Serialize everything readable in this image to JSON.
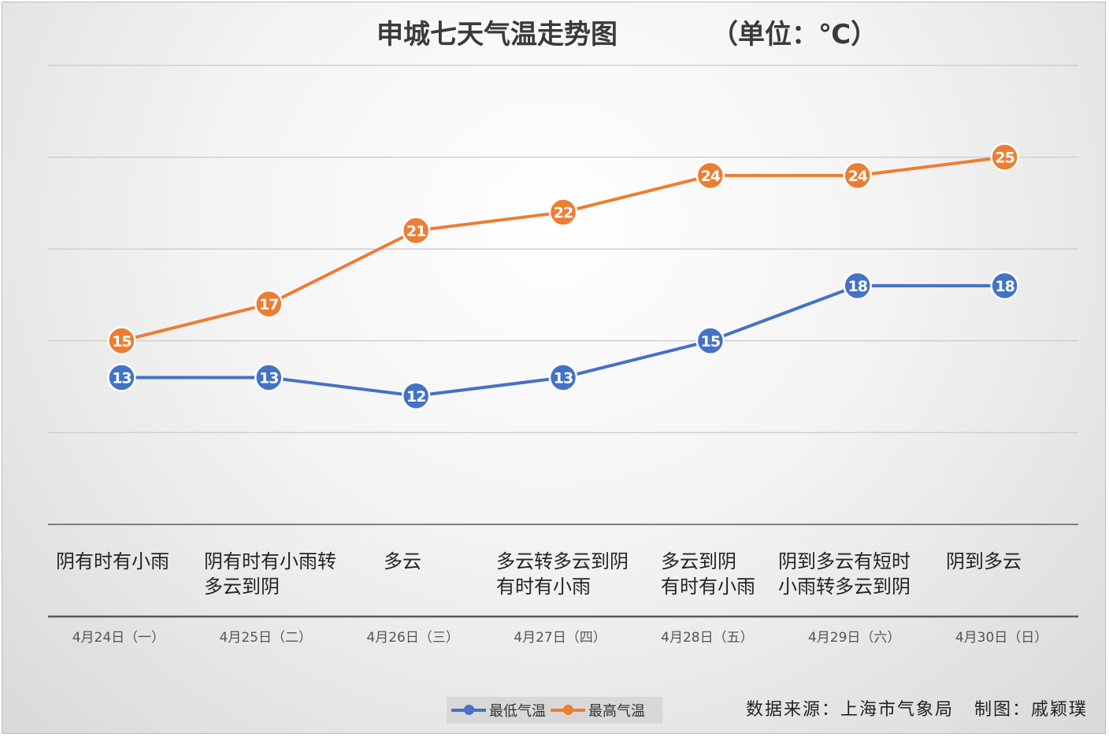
{
  "chart_data": {
    "type": "line",
    "title": "申城七天气温走势图",
    "unit_label": "（单位：℃）",
    "categories": [
      "4月24日（一）",
      "4月25日（二）",
      "4月26日（三）",
      "4月27日（四）",
      "4月28日（五）",
      "4月29日（六）",
      "4月30日（日）"
    ],
    "weather": [
      [
        "阴有时有小雨"
      ],
      [
        "阴有时有小雨转",
        "多云到阴"
      ],
      [
        "多云"
      ],
      [
        "多云转多云到阴",
        "有时有小雨"
      ],
      [
        "多云到阴",
        "有时有小雨"
      ],
      [
        "阴到多云有短时",
        "小雨转多云到阴"
      ],
      [
        "阴到多云"
      ]
    ],
    "series": [
      {
        "name": "最低气温",
        "color": "#4472c4",
        "values": [
          13,
          13,
          12,
          13,
          15,
          18,
          18
        ]
      },
      {
        "name": "最高气温",
        "color": "#ed7d31",
        "values": [
          15,
          17,
          21,
          22,
          24,
          24,
          25
        ]
      }
    ],
    "ylim": [
      5,
      30
    ],
    "gridlines": [
      5,
      10,
      15,
      20,
      25,
      30
    ],
    "legend_position": "bottom",
    "data_labels": true
  },
  "footer": {
    "source": "数据来源：上海市气象局",
    "credit": "制图：戚颖璞"
  }
}
